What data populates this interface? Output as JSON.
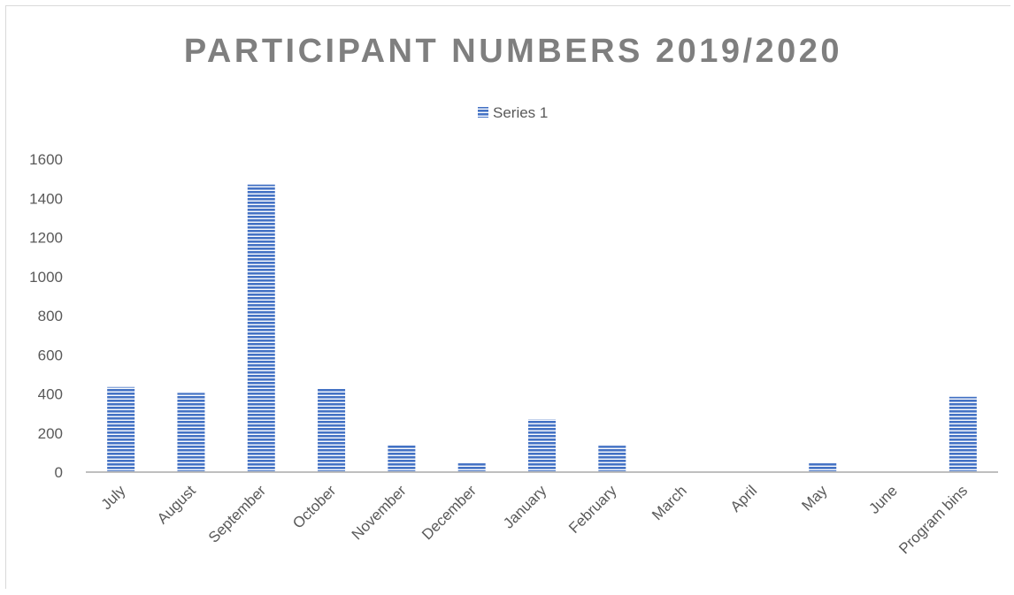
{
  "chart_data": {
    "type": "bar",
    "title": "PARTICIPANT NUMBERS 2019/2020",
    "xlabel": "",
    "ylabel": "",
    "categories": [
      "July",
      "August",
      "September",
      "October",
      "November",
      "December",
      "January",
      "February",
      "March",
      "April",
      "May",
      "June",
      "Program bins"
    ],
    "series": [
      {
        "name": "Series 1",
        "values": [
          435,
          405,
          1470,
          425,
          140,
          45,
          270,
          135,
          0,
          0,
          45,
          0,
          385
        ],
        "color": "#4472c4"
      }
    ],
    "ylim": [
      0,
      1600
    ],
    "yticks": [
      0,
      200,
      400,
      600,
      800,
      1000,
      1200,
      1400,
      1600
    ],
    "grid": false,
    "legend_position": "top-center",
    "bar_pattern": "horizontal-stripes"
  }
}
